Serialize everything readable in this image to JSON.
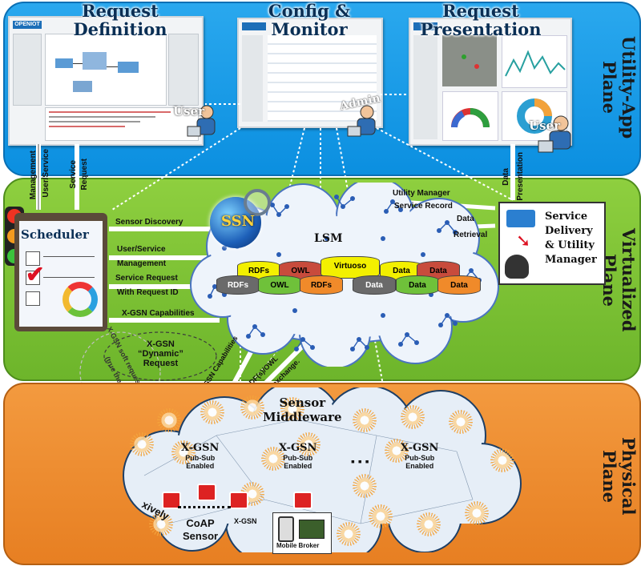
{
  "planes": {
    "utility": "Utility-App Plane",
    "virtualized": "Virtualized Plane",
    "physical": "Physical Plane"
  },
  "utility": {
    "request_definition": {
      "line1": "Request",
      "line2": "Definition"
    },
    "config_monitor": {
      "line1": "Config &",
      "line2": "Monitor"
    },
    "request_presentation": {
      "line1": "Request",
      "line2": "Presentation"
    },
    "user_label": "User",
    "admin_label": "Admin",
    "user2_label": "User",
    "logo_text": "OPENIOT"
  },
  "connectors": {
    "management": "Management",
    "user_service": "User/Service",
    "service": "Service",
    "request": "Request",
    "data": "Data",
    "presentation": "Presentation"
  },
  "virtualized": {
    "scheduler": "Scheduler",
    "sensor_discovery": "Sensor Discovery",
    "user_service": "User/Service",
    "management": "Management",
    "service_request": "Service Request",
    "with_request_id": "With Request ID",
    "xgsn_capabilities": "X-GSN Capabilities",
    "xgsn_dynamic": {
      "line1": "X-GSN",
      "line2": "“Dynamic”",
      "line3": "Request"
    },
    "ssn": "SSN",
    "lsm": "LSM",
    "utility_manager": "Utility Manager",
    "service_record": "Service Record",
    "data": "Data",
    "retrieval": "Retrieval",
    "service_delivery": {
      "line1": "Service",
      "line2": "Delivery",
      "line3": "& Utility",
      "line4": "Manager"
    },
    "databases_top": [
      "RDFs",
      "OWL",
      "Virtuoso",
      "Data",
      "Data"
    ],
    "databases_bottom": [
      "RDFs",
      "OWL",
      "RDFs",
      "Data",
      "Data",
      "Data"
    ],
    "xgsn_soft_request": "X-GSN soft request",
    "true_the_cloud": "(true the cloud)",
    "xgsn_capabilities_diag": "X-GSN Capabilities",
    "rdf_owl": "RDF(s)/OWL",
    "data_exchange": "Data exchange."
  },
  "physical": {
    "sensor_middleware": {
      "line1": "Sensor",
      "line2": "Middleware"
    },
    "xgsn": "X-GSN",
    "pubsub": "Pub-Sub",
    "enabled": "Enabled",
    "dots": "▪ ▪ ▪",
    "xively": "xively",
    "coap": {
      "line1": "CoAP",
      "line2": "Sensor"
    },
    "xgsn_small": "X-GSN",
    "mobile_broker": "Mobile Broker"
  },
  "colors": {
    "utility_blue": "#0b8fe0",
    "virtual_green": "#6db52b",
    "physical_orange": "#e77f22",
    "db_yellow": "#f3f000",
    "db_red": "#c84b3c",
    "db_green": "#6fc13a",
    "db_gray": "#6a6a6a",
    "db_orange": "#f08a2a"
  }
}
